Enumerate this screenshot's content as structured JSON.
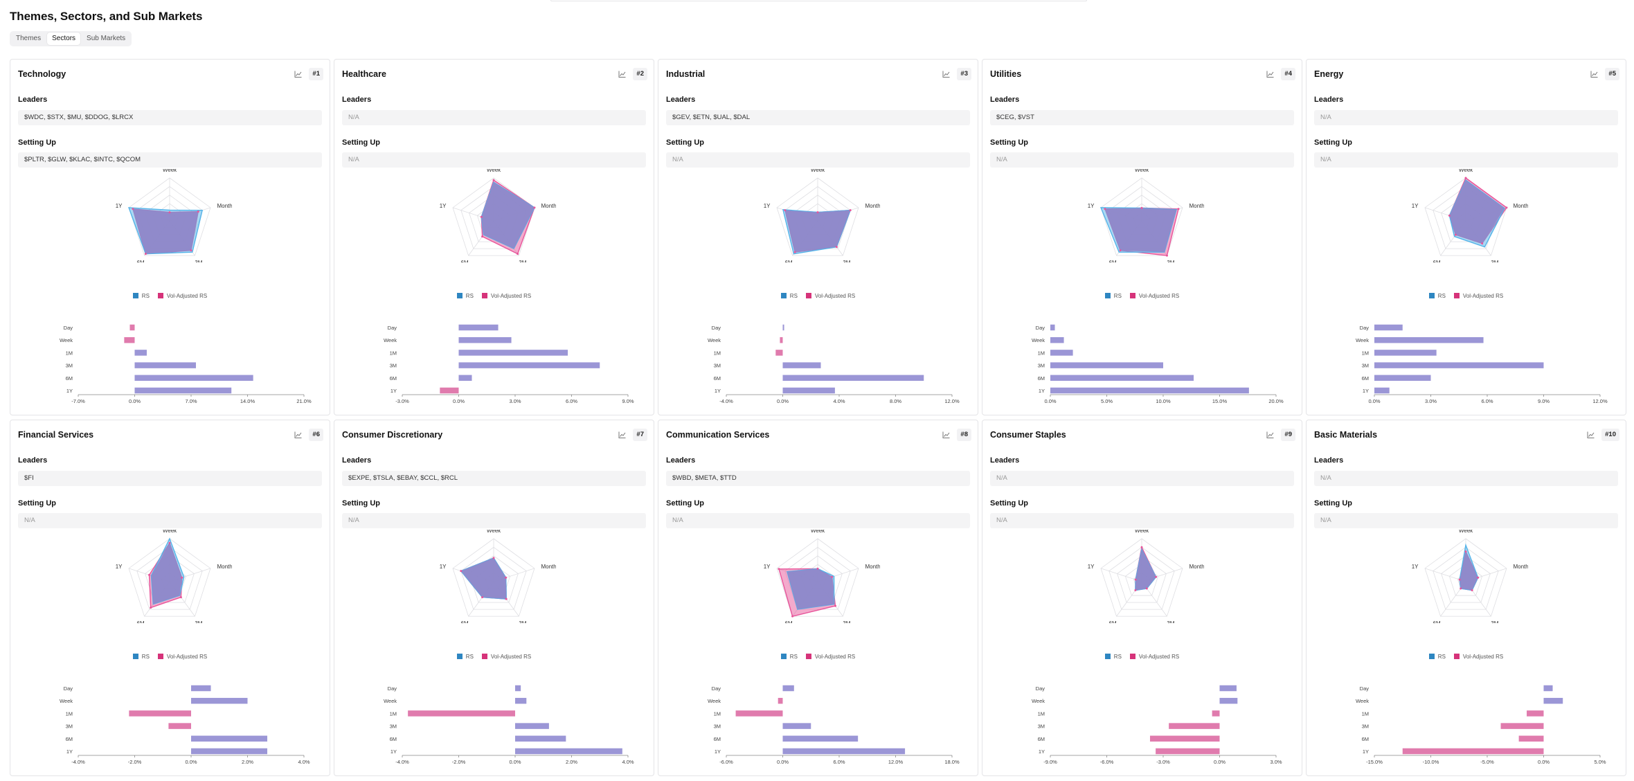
{
  "page": {
    "title": "Themes, Sectors, and Sub Markets"
  },
  "tabs": [
    {
      "label": "Themes",
      "active": false
    },
    {
      "label": "Sectors",
      "active": true
    },
    {
      "label": "Sub Markets",
      "active": false
    }
  ],
  "labels": {
    "leaders": "Leaders",
    "setting_up": "Setting Up",
    "legend_rs": "RS",
    "legend_vol": "Vol-Adjusted RS"
  },
  "colors": {
    "rs": "#56b4e9",
    "vol": "#e8559a",
    "overlap": "#8e86c9",
    "bar_pos": "#9b96d6",
    "bar_neg": "#e07bad",
    "legend_rs": "#2e86c1",
    "legend_vol": "#d6337a"
  },
  "radar_axes": [
    "Week",
    "Month",
    "3M",
    "6M",
    "1Y"
  ],
  "bar_categories": [
    "Day",
    "Week",
    "1M",
    "3M",
    "6M",
    "1Y"
  ],
  "sectors": [
    {
      "name": "Technology",
      "rank": "#1",
      "leaders": "$WDC, $STX, $MU, $DDOG, $LRCX",
      "setting_up": "$PLTR, $GLW, $KLAC, $INTC, $QCOM",
      "radar_rs": [
        0.25,
        0.8,
        0.9,
        0.95,
        1.0
      ],
      "radar_vol": [
        0.2,
        0.7,
        0.85,
        0.95,
        0.9
      ],
      "bars": [
        -0.6,
        -1.3,
        1.5,
        7.6,
        14.7,
        12.0
      ],
      "xmin": -7,
      "xmax": 21,
      "ticks": [
        -7,
        0,
        7,
        14,
        21
      ]
    },
    {
      "name": "Healthcare",
      "rank": "#2",
      "leaders": "N/A",
      "setting_up": "N/A",
      "radar_rs": [
        0.9,
        1.0,
        0.8,
        0.4,
        0.3
      ],
      "radar_vol": [
        0.95,
        1.0,
        0.95,
        0.45,
        0.3
      ],
      "bars": [
        2.1,
        2.8,
        5.8,
        7.5,
        0.7,
        -1.0
      ],
      "xmin": -3,
      "xmax": 9,
      "ticks": [
        -3,
        0,
        3,
        6,
        9
      ]
    },
    {
      "name": "Industrial",
      "rank": "#3",
      "leaders": "$GEV, $ETN, $UAL, $DAL",
      "setting_up": "N/A",
      "radar_rs": [
        0.2,
        0.8,
        0.75,
        0.95,
        0.85
      ],
      "radar_vol": [
        0.2,
        0.8,
        0.75,
        0.9,
        0.8
      ],
      "bars": [
        0.1,
        -0.2,
        -0.5,
        2.7,
        10.0,
        3.7
      ],
      "xmin": -4,
      "xmax": 12,
      "ticks": [
        -4,
        0,
        4,
        8,
        12
      ]
    },
    {
      "name": "Utilities",
      "rank": "#4",
      "leaders": "$CEG, $VST",
      "setting_up": "N/A",
      "radar_rs": [
        0.3,
        0.85,
        0.9,
        0.9,
        1.0
      ],
      "radar_vol": [
        0.3,
        0.9,
        1.0,
        0.85,
        0.9
      ],
      "bars": [
        0.4,
        1.2,
        2.0,
        10.0,
        12.7,
        17.6
      ],
      "xmin": 0,
      "xmax": 20,
      "ticks": [
        0,
        5,
        10,
        15,
        20
      ]
    },
    {
      "name": "Energy",
      "rank": "#5",
      "leaders": "N/A",
      "setting_up": "N/A",
      "radar_rs": [
        0.95,
        0.95,
        0.75,
        0.45,
        0.4
      ],
      "radar_vol": [
        1.0,
        1.0,
        0.65,
        0.4,
        0.4
      ],
      "bars": [
        1.5,
        5.8,
        3.3,
        9.0,
        3.0,
        0.8
      ],
      "xmin": 0,
      "xmax": 12,
      "ticks": [
        0,
        3,
        6,
        9,
        12
      ]
    },
    {
      "name": "Financial Services",
      "rank": "#6",
      "leaders": "$FI",
      "setting_up": "N/A",
      "radar_rs": [
        1.0,
        0.35,
        0.4,
        0.65,
        0.45
      ],
      "radar_vol": [
        0.9,
        0.3,
        0.45,
        0.75,
        0.5
      ],
      "bars": [
        0.7,
        2.0,
        -2.2,
        -0.8,
        2.7,
        2.7
      ],
      "xmin": -4,
      "xmax": 4,
      "ticks": [
        -4,
        -2,
        0,
        2,
        4
      ]
    },
    {
      "name": "Consumer Discretionary",
      "rank": "#7",
      "leaders": "$EXPE, $TSLA, $EBAY, $CCL, $RCL",
      "setting_up": "N/A",
      "radar_rs": [
        0.55,
        0.3,
        0.5,
        0.45,
        0.8
      ],
      "radar_vol": [
        0.55,
        0.3,
        0.5,
        0.45,
        0.8
      ],
      "bars": [
        0.2,
        0.4,
        -3.8,
        1.2,
        1.8,
        3.8
      ],
      "xmin": -4,
      "xmax": 4,
      "ticks": [
        -4,
        -2,
        0,
        2,
        4
      ]
    },
    {
      "name": "Communication Services",
      "rank": "#8",
      "leaders": "$WBD, $META, $TTD",
      "setting_up": "N/A",
      "radar_rs": [
        0.3,
        0.4,
        0.65,
        0.8,
        0.75
      ],
      "radar_vol": [
        0.3,
        0.35,
        0.7,
        1.0,
        0.95
      ],
      "bars": [
        1.2,
        -0.5,
        -5.0,
        3.0,
        8.0,
        13.0
      ],
      "xmin": -6,
      "xmax": 18,
      "ticks": [
        -6,
        0,
        6,
        12,
        18
      ]
    },
    {
      "name": "Consumer Staples",
      "rank": "#9",
      "leaders": "N/A",
      "setting_up": "N/A",
      "radar_rs": [
        0.75,
        0.35,
        0.2,
        0.25,
        0.15
      ],
      "radar_vol": [
        0.8,
        0.35,
        0.2,
        0.25,
        0.15
      ],
      "bars": [
        0.9,
        0.95,
        -0.4,
        -2.7,
        -3.7,
        -3.4
      ],
      "xmin": -9,
      "xmax": 3,
      "ticks": [
        -9,
        -6,
        -3,
        0,
        3
      ]
    },
    {
      "name": "Basic Materials",
      "rank": "#10",
      "leaders": "N/A",
      "setting_up": "N/A",
      "radar_rs": [
        0.85,
        0.3,
        0.25,
        0.2,
        0.15
      ],
      "radar_vol": [
        0.7,
        0.3,
        0.25,
        0.2,
        0.15
      ],
      "bars": [
        0.8,
        1.7,
        -1.5,
        -3.8,
        -2.2,
        -12.5
      ],
      "xmin": -15,
      "xmax": 5,
      "ticks": [
        -15,
        -10,
        -5,
        0,
        5
      ]
    }
  ]
}
